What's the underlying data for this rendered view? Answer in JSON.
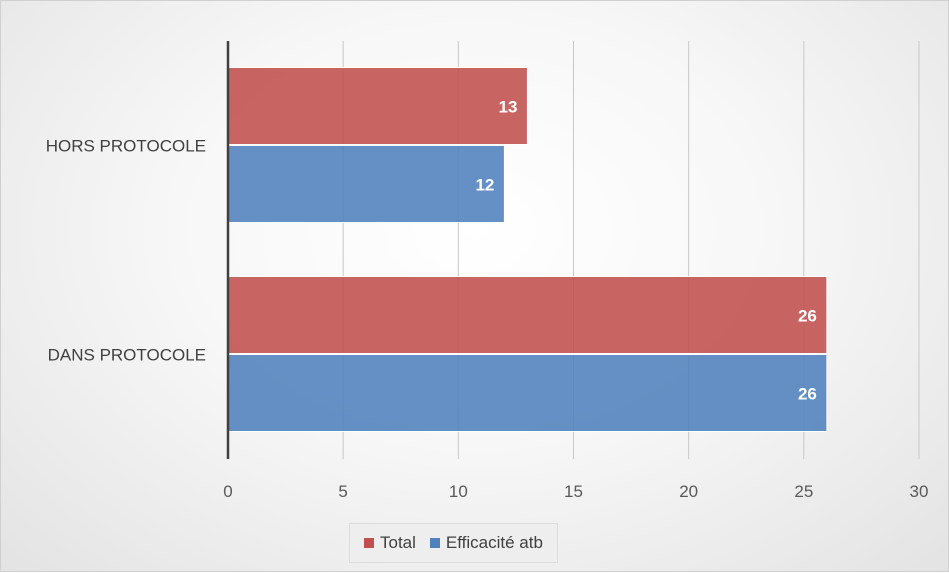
{
  "chart_data": {
    "type": "bar",
    "orientation": "horizontal",
    "categories": [
      "HORS PROTOCOLE",
      "DANS PROTOCOLE"
    ],
    "series": [
      {
        "name": "Total",
        "values": [
          13,
          26
        ],
        "color": "#c0504d"
      },
      {
        "name": "Efficacité atb",
        "values": [
          12,
          26
        ],
        "color": "#4f81bd"
      }
    ],
    "xlim": [
      0,
      30
    ],
    "x_ticks": [
      0,
      5,
      10,
      15,
      20,
      25,
      30
    ],
    "grid": true,
    "legend_position": "bottom",
    "data_labels": true
  }
}
